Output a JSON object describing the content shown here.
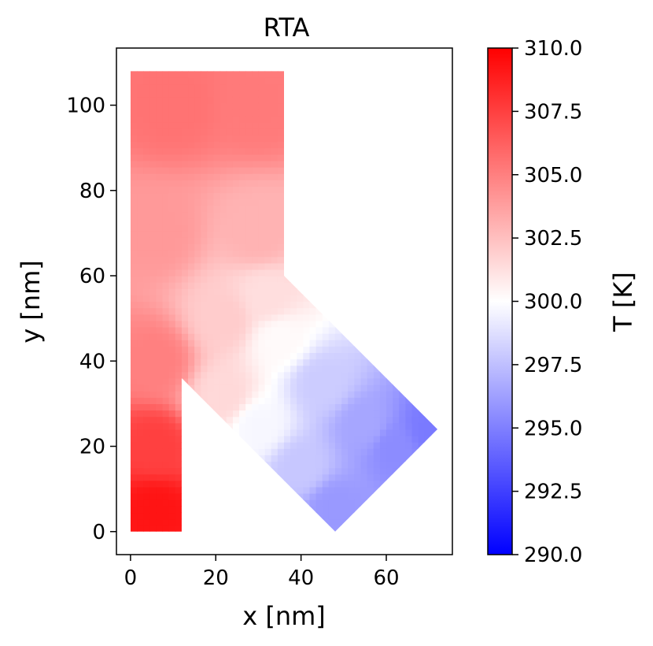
{
  "chart_data": {
    "type": "heatmap",
    "title": "RTA",
    "xlabel": "x [nm]",
    "ylabel": "y [nm]",
    "xlim": [
      -3.3,
      75.5
    ],
    "ylim": [
      -5.4,
      113.4
    ],
    "x_ticks": [
      0,
      20,
      40,
      60
    ],
    "y_ticks": [
      0,
      20,
      40,
      60,
      80,
      100
    ],
    "x_tick_labels": [
      "0",
      "20",
      "40",
      "60"
    ],
    "y_tick_labels": [
      "0",
      "20",
      "40",
      "60",
      "80",
      "100"
    ],
    "grid": false,
    "colorbar": {
      "label": "T [K]",
      "range": [
        290.0,
        310.0
      ],
      "ticks": [
        290.0,
        292.5,
        295.0,
        297.5,
        300.0,
        302.5,
        305.0,
        307.5,
        310.0
      ],
      "tick_labels": [
        "290.0",
        "292.5",
        "295.0",
        "297.5",
        "300.0",
        "302.5",
        "305.0",
        "307.5",
        "310.0"
      ],
      "colormap": "bwr",
      "colors": {
        "low": "#0000ff",
        "mid": "#ffffff",
        "high": "#ff0000"
      }
    },
    "domain_outline": [
      [
        0,
        0
      ],
      [
        12,
        0
      ],
      [
        12,
        36
      ],
      [
        24,
        24
      ],
      [
        48,
        0
      ],
      [
        72,
        24
      ],
      [
        36,
        60
      ],
      [
        36,
        108
      ],
      [
        0,
        108
      ]
    ],
    "temperature_field": [
      {
        "x": 6,
        "y": 5,
        "T": 309.2
      },
      {
        "x": 6,
        "y": 20,
        "T": 307.5
      },
      {
        "x": 6,
        "y": 40,
        "T": 305.0
      },
      {
        "x": 6,
        "y": 70,
        "T": 304.0
      },
      {
        "x": 10,
        "y": 100,
        "T": 305.5
      },
      {
        "x": 30,
        "y": 100,
        "T": 305.2
      },
      {
        "x": 30,
        "y": 70,
        "T": 303.0
      },
      {
        "x": 22,
        "y": 50,
        "T": 302.0
      },
      {
        "x": 32,
        "y": 55,
        "T": 301.3
      },
      {
        "x": 22,
        "y": 32,
        "T": 301.5
      },
      {
        "x": 35,
        "y": 45,
        "T": 300.2
      },
      {
        "x": 30,
        "y": 25,
        "T": 299.7
      },
      {
        "x": 45,
        "y": 35,
        "T": 298.0
      },
      {
        "x": 40,
        "y": 15,
        "T": 297.8
      },
      {
        "x": 55,
        "y": 25,
        "T": 296.5
      },
      {
        "x": 48,
        "y": 6,
        "T": 296.0
      },
      {
        "x": 62,
        "y": 20,
        "T": 295.5
      },
      {
        "x": 70,
        "y": 24,
        "T": 294.8
      }
    ]
  }
}
